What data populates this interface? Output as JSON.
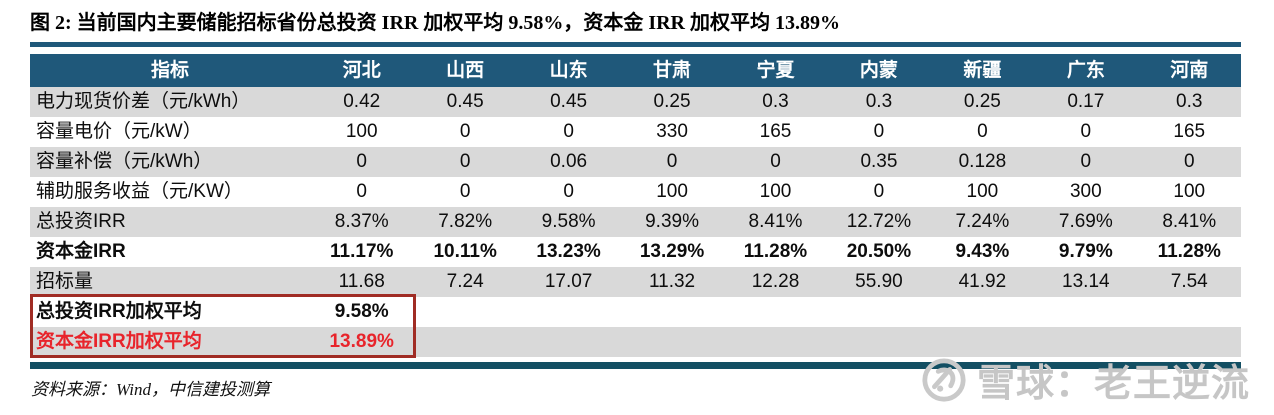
{
  "title": "图 2: 当前国内主要储能招标省份总投资 IRR 加权平均 9.58%，资本金 IRR 加权平均 13.89%",
  "table": {
    "columns": [
      "指标",
      "河北",
      "山西",
      "山东",
      "甘肃",
      "宁夏",
      "内蒙",
      "新疆",
      "广东",
      "河南"
    ],
    "rows": [
      {
        "label": "电力现货价差（元/kWh）",
        "values": [
          "0.42",
          "0.45",
          "0.45",
          "0.25",
          "0.3",
          "0.3",
          "0.25",
          "0.17",
          "0.3"
        ],
        "bold": false,
        "red": false
      },
      {
        "label": "容量电价（元/kW）",
        "values": [
          "100",
          "0",
          "0",
          "330",
          "165",
          "0",
          "0",
          "0",
          "165"
        ],
        "bold": false,
        "red": false
      },
      {
        "label": "容量补偿（元/kWh）",
        "values": [
          "0",
          "0",
          "0.06",
          "0",
          "0",
          "0.35",
          "0.128",
          "0",
          "0"
        ],
        "bold": false,
        "red": false
      },
      {
        "label": "辅助服务收益（元/KW）",
        "values": [
          "0",
          "0",
          "0",
          "100",
          "100",
          "0",
          "100",
          "300",
          "100"
        ],
        "bold": false,
        "red": false
      },
      {
        "label": "总投资IRR",
        "values": [
          "8.37%",
          "7.82%",
          "9.58%",
          "9.39%",
          "8.41%",
          "12.72%",
          "7.24%",
          "7.69%",
          "8.41%"
        ],
        "bold": false,
        "red": false
      },
      {
        "label": "资本金IRR",
        "values": [
          "11.17%",
          "10.11%",
          "13.23%",
          "13.29%",
          "11.28%",
          "20.50%",
          "9.43%",
          "9.79%",
          "11.28%"
        ],
        "bold": true,
        "red": false
      },
      {
        "label": "招标量",
        "values": [
          "11.68",
          "7.24",
          "17.07",
          "11.32",
          "12.28",
          "55.90",
          "41.92",
          "13.14",
          "7.54"
        ],
        "bold": false,
        "red": false
      },
      {
        "label": "总投资IRR加权平均",
        "values": [
          "9.58%",
          "",
          "",
          "",
          "",
          "",
          "",
          "",
          ""
        ],
        "bold": true,
        "red": false
      },
      {
        "label": "资本金IRR加权平均",
        "values": [
          "13.89%",
          "",
          "",
          "",
          "",
          "",
          "",
          "",
          ""
        ],
        "bold": true,
        "red": true
      }
    ]
  },
  "source": "资料来源：Wind，中信建投测算",
  "watermark": {
    "text": "雪球：老王逆流",
    "logo": "xueqiu-logo"
  },
  "colors": {
    "header_bg": "#1f587a",
    "zebra_gray": "#d9d9d9",
    "title_rule": "#1f587a",
    "bottom_rule": "#134f63",
    "highlight_border": "#a02c24",
    "red_text": "#e8242b",
    "watermark_gray": "#c6c6c6"
  }
}
